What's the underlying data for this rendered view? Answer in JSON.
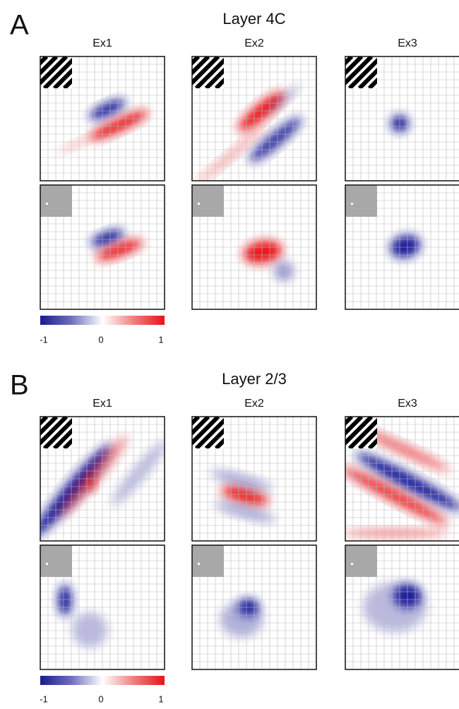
{
  "panels": [
    {
      "letter": "A",
      "title": "Layer 4C",
      "columns": [
        "Ex1",
        "Ex2",
        "Ex3"
      ],
      "colorbar_ticks": [
        "-1",
        "0",
        "1"
      ]
    },
    {
      "letter": "B",
      "title": "Layer 2/3",
      "columns": [
        "Ex1",
        "Ex2",
        "Ex3"
      ],
      "colorbar_ticks": [
        "-1",
        "0",
        "1"
      ]
    }
  ]
}
